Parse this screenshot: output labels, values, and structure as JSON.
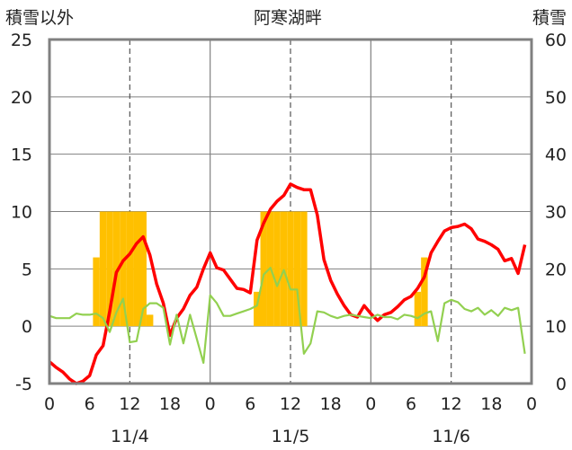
{
  "chart_data": {
    "type": "bar+line",
    "title": "阿寒湖畔",
    "left_axis_label": "積雪以外",
    "right_axis_label": "積雪",
    "left_ylim": [
      -5,
      25
    ],
    "left_ticks": [
      -5,
      0,
      5,
      10,
      15,
      20,
      25
    ],
    "right_ylim": [
      0,
      60
    ],
    "right_ticks": [
      0,
      10,
      20,
      30,
      40,
      50,
      60
    ],
    "x_range_hours": [
      0,
      72
    ],
    "x_tick_labels": [
      "0",
      "6",
      "12",
      "18",
      "0",
      "6",
      "12",
      "18",
      "0",
      "6",
      "12",
      "18",
      "0"
    ],
    "day_labels": [
      "11/4",
      "11/5",
      "11/6"
    ],
    "grid": "dashed vertical at 12h, solid vertical at day boundaries",
    "colors": {
      "bar": "#FFC000",
      "temperature": "#FF0000",
      "green_series": "#92D050",
      "snow_depth": "#7030A0",
      "frame": "#808080"
    },
    "series": [
      {
        "kind": "bar",
        "axis": "left",
        "color": "#FFC000",
        "x": [
          7,
          8,
          9,
          10,
          11,
          12,
          13,
          14,
          15,
          16,
          31,
          32,
          33,
          34,
          35,
          36,
          37,
          38,
          39,
          55,
          56
        ],
        "values": [
          6,
          10,
          10,
          10,
          10,
          10,
          10,
          10,
          1,
          0,
          3,
          10,
          10,
          10,
          10,
          10,
          10,
          10,
          0,
          3,
          6
        ]
      },
      {
        "kind": "line",
        "axis": "left",
        "color": "#FF0000",
        "x": [
          0,
          1,
          2,
          3,
          4,
          5,
          6,
          7,
          8,
          9,
          10,
          11,
          12,
          13,
          14,
          15,
          16,
          17,
          18,
          19,
          20,
          21,
          22,
          23,
          24,
          25,
          26,
          27,
          28,
          29,
          30,
          31,
          32,
          33,
          34,
          35,
          36,
          37,
          38,
          39,
          40,
          41,
          42,
          43,
          44,
          45,
          46,
          47,
          48,
          49,
          50,
          51,
          52,
          53,
          54,
          55,
          56,
          57,
          58,
          59,
          60,
          61,
          62,
          63,
          64,
          65,
          66,
          67,
          68,
          69,
          70,
          71
        ],
        "values": [
          -3.1,
          -3.6,
          -4.0,
          -4.6,
          -5.0,
          -4.8,
          -4.3,
          -2.5,
          -1.7,
          1.3,
          4.7,
          5.7,
          6.3,
          7.2,
          7.8,
          6.2,
          3.7,
          2.0,
          -0.8,
          0.7,
          1.5,
          2.7,
          3.4,
          5.0,
          6.4,
          5.1,
          4.9,
          4.1,
          3.3,
          3.2,
          2.9,
          7.5,
          9.0,
          10.2,
          10.9,
          11.4,
          12.4,
          12.1,
          11.9,
          11.9,
          9.7,
          5.8,
          4.0,
          2.8,
          1.8,
          1.0,
          0.8,
          1.8,
          1.1,
          0.5,
          1.0,
          1.2,
          1.7,
          2.3,
          2.6,
          3.3,
          4.3,
          6.4,
          7.4,
          8.3,
          8.6,
          8.7,
          8.9,
          8.5,
          7.6,
          7.4,
          7.1,
          6.7,
          5.7,
          5.9,
          4.6,
          7.1
        ]
      },
      {
        "kind": "line",
        "axis": "left",
        "color": "#92D050",
        "x": [
          0,
          1,
          2,
          3,
          4,
          5,
          6,
          7,
          8,
          9,
          10,
          11,
          12,
          13,
          14,
          15,
          16,
          17,
          18,
          19,
          20,
          21,
          22,
          23,
          24,
          25,
          26,
          27,
          28,
          29,
          30,
          31,
          32,
          33,
          34,
          35,
          36,
          37,
          38,
          39,
          40,
          41,
          42,
          43,
          44,
          45,
          46,
          47,
          48,
          49,
          50,
          51,
          52,
          53,
          54,
          55,
          56,
          57,
          58,
          59,
          60,
          61,
          62,
          63,
          64,
          65,
          66,
          67,
          68,
          69,
          70,
          71
        ],
        "values": [
          0.9,
          0.7,
          0.7,
          0.7,
          1.1,
          1.0,
          1.0,
          1.1,
          0.7,
          -0.5,
          1.2,
          2.4,
          -1.4,
          -1.3,
          1.5,
          2.0,
          2.0,
          1.6,
          -1.6,
          1.0,
          -1.5,
          1.0,
          -1.1,
          -3.2,
          2.7,
          2.0,
          0.9,
          0.9,
          1.1,
          1.3,
          1.5,
          1.8,
          4.5,
          5.1,
          3.5,
          4.9,
          3.2,
          3.2,
          -2.4,
          -1.5,
          1.3,
          1.2,
          0.9,
          0.7,
          0.9,
          1.0,
          0.9,
          0.8,
          0.7,
          1.0,
          0.8,
          0.8,
          0.6,
          1.0,
          0.9,
          0.7,
          1.1,
          1.3,
          -1.3,
          2.0,
          2.3,
          2.1,
          1.5,
          1.3,
          1.6,
          1.0,
          1.4,
          0.9,
          1.6,
          1.4,
          1.6,
          -2.4
        ]
      },
      {
        "kind": "line",
        "axis": "right",
        "color": "#7030A0",
        "x": [
          0,
          72
        ],
        "values": [
          0,
          0
        ]
      }
    ]
  }
}
